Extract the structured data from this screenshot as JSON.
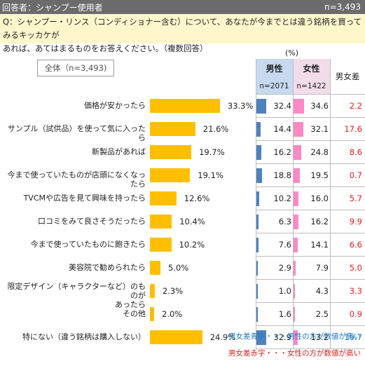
{
  "header": {
    "respondent_label": "回答者：シャンプー使用者",
    "n_label": "n=3,493"
  },
  "question": {
    "line1": "Q：シャンプー・リンス（コンディショナー含む）について、あなたが今までとは違う銘柄を買ってみるキッカケが",
    "line2": "あれば、あてはまるものをお答えください。（複数回答）"
  },
  "unit": "(%)",
  "total_label": "全体（n=3,493)",
  "columns": {
    "male": {
      "label": "男性",
      "n": "n=2071"
    },
    "female": {
      "label": "女性",
      "n": "n=1422"
    },
    "diff": {
      "label": "男女差"
    }
  },
  "colors": {
    "bar": "#ffbf00",
    "male_bar": "#4f81bd",
    "female_bar": "#ff88c6",
    "diff_male_higher": "#1f78c4",
    "diff_female_higher": "#e02020"
  },
  "chart_data": {
    "type": "bar",
    "orientation": "horizontal",
    "xlim": [
      0,
      100
    ],
    "categories": [
      [
        "価格が安かったら"
      ],
      [
        "サンプル（試供品）を使って気に入ったら"
      ],
      [
        "新製品があれば"
      ],
      [
        "今まで使っていたものが店頭になくなったら"
      ],
      [
        "TVCMや広告を見て興味を持ったら"
      ],
      [
        "口コミをみて良さそうだったら"
      ],
      [
        "今まで使っていたものに飽きたら"
      ],
      [
        "美容院で勧められたら"
      ],
      [
        "限定デザイン（キャラクターなど）のものが",
        "あったら"
      ],
      [
        "その他"
      ],
      [
        "特にない（違う銘柄は購入しない）"
      ]
    ],
    "series": [
      {
        "name": "全体（n=3,493)",
        "values": [
          33.3,
          21.6,
          19.7,
          19.1,
          12.6,
          10.4,
          10.2,
          5.0,
          2.3,
          2.0,
          24.9
        ],
        "labels": [
          "33.3%",
          "21.6%",
          "19.7%",
          "19.1%",
          "12.6%",
          "10.4%",
          "10.2%",
          "5.0%",
          "2.3%",
          "2.0%",
          "24.9%"
        ]
      },
      {
        "name": "男性",
        "values": [
          32.4,
          14.4,
          16.2,
          18.8,
          10.2,
          6.3,
          7.6,
          2.9,
          1.0,
          1.6,
          32.9
        ],
        "labels": [
          "32.4",
          "14.4",
          "16.2",
          "18.8",
          "10.2",
          "6.3",
          "7.6",
          "2.9",
          "1.0",
          "1.6",
          "32.9"
        ]
      },
      {
        "name": "女性",
        "values": [
          34.6,
          32.1,
          24.8,
          19.5,
          16.0,
          16.2,
          14.1,
          7.9,
          4.3,
          2.5,
          13.2
        ],
        "labels": [
          "34.6",
          "32.1",
          "24.8",
          "19.5",
          "16.0",
          "16.2",
          "14.1",
          "7.9",
          "4.3",
          "2.5",
          "13.2"
        ]
      },
      {
        "name": "男女差",
        "values": [
          2.2,
          17.6,
          8.6,
          0.7,
          5.7,
          9.9,
          6.6,
          5.0,
          3.3,
          0.9,
          19.7
        ],
        "labels": [
          "2.2",
          "17.6",
          "8.6",
          "0.7",
          "5.7",
          "9.9",
          "6.6",
          "5.0",
          "3.3",
          "0.9",
          "19.7"
        ],
        "higher": [
          "female",
          "female",
          "female",
          "female",
          "female",
          "female",
          "female",
          "female",
          "female",
          "female",
          "male"
        ]
      }
    ]
  },
  "notes": {
    "blue": "男女差青字・・・男性の方が数値が高い",
    "red": "男女差赤字・・・女性の方が数値が高い"
  }
}
